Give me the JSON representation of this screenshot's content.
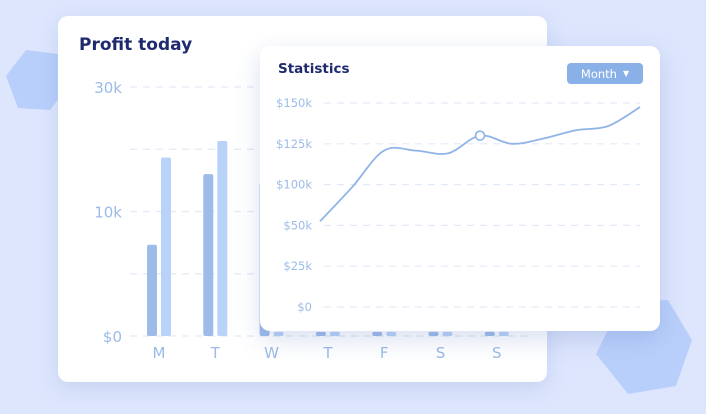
{
  "profit_card": {
    "title": "Profit today"
  },
  "stats_card": {
    "title": "Statistics",
    "period_select": "Month"
  },
  "colors": {
    "background": "#dde6fd",
    "bar_dark": "#9dbcea",
    "bar_light": "#b9d3f8",
    "line": "#8fb4e6",
    "axis_text": "#9bbbe8",
    "title": "#1f2a6e"
  },
  "chart_data": [
    {
      "type": "bar",
      "title": "Profit today",
      "categories": [
        "M",
        "T",
        "W",
        "T",
        "F",
        "S",
        "S"
      ],
      "y_ticks": [
        "30k",
        "",
        "10k",
        "",
        "$0"
      ],
      "ylim": [
        0,
        30
      ],
      "grid": true,
      "series": [
        {
          "values": [
            11.0,
            19.5,
            18.5,
            0.5,
            0.5,
            0.5,
            0.5
          ]
        },
        {
          "values": [
            21.5,
            23.5,
            0.5,
            0.5,
            0.5,
            0.5,
            0.5
          ]
        }
      ]
    },
    {
      "type": "line",
      "title": "Statistics",
      "y_ticks": [
        "$150k",
        "$125k",
        "$100k",
        "$50k",
        "$25k",
        "$0"
      ],
      "ylim": [
        0,
        150
      ],
      "grid": true,
      "series": [
        {
          "values": [
            63,
            88,
            115,
            115,
            113,
            126,
            120,
            124,
            130,
            133,
            147
          ]
        }
      ],
      "highlight_index": 5
    }
  ]
}
